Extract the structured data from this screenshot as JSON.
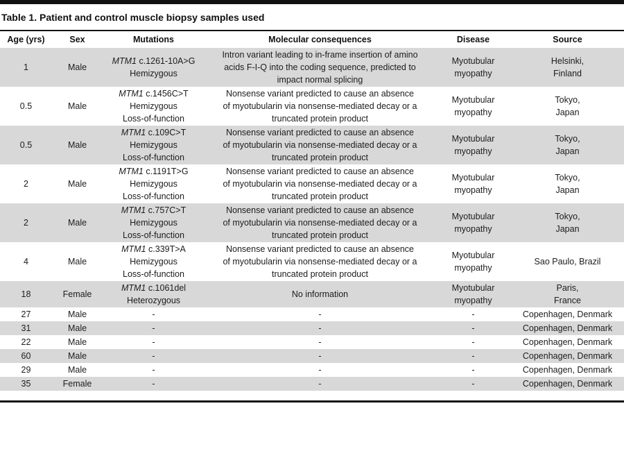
{
  "colors": {
    "stripe_gray": "#d8d8d8",
    "rule_black": "#111111"
  },
  "table": {
    "title": "Table 1. Patient and control muscle biopsy samples used",
    "columns": [
      "Age (yrs)",
      "Sex",
      "Mutations",
      "Molecular consequences",
      "Disease",
      "Source"
    ],
    "rows": [
      {
        "age": "1",
        "sex": "Male",
        "mutation": {
          "gene": "MTM1",
          "variant": "c.1261-10A>G",
          "zygosity": "Hemizygous"
        },
        "consequences": "Intron variant leading to in-frame insertion of amino\nacids F-I-Q into the coding sequence, predicted to\nimpact normal splicing",
        "disease": "Myotubular\nmyopathy",
        "source": "Helsinki,\nFinland"
      },
      {
        "age": "0.5",
        "sex": "Male",
        "mutation": {
          "gene": "MTM1",
          "variant": "c.1456C>T",
          "zygosity": "Hemizygous\nLoss-of-function"
        },
        "consequences": "Nonsense variant predicted to cause an absence\nof myotubularin via nonsense-mediated decay or a\ntruncated protein product",
        "disease": "Myotubular\nmyopathy",
        "source": "Tokyo,\nJapan"
      },
      {
        "age": "0.5",
        "sex": "Male",
        "mutation": {
          "gene": "MTM1",
          "variant": "c.109C>T",
          "zygosity": "Hemizygous\nLoss-of-function"
        },
        "consequences": "Nonsense variant predicted to cause an absence\nof myotubularin via nonsense-mediated decay or a\ntruncated protein product",
        "disease": "Myotubular\nmyopathy",
        "source": "Tokyo,\nJapan"
      },
      {
        "age": "2",
        "sex": "Male",
        "mutation": {
          "gene": "MTM1",
          "variant": "c.1191T>G",
          "zygosity": "Hemizygous\nLoss-of-function"
        },
        "consequences": "Nonsense variant predicted to cause an absence\nof myotubularin via nonsense-mediated decay or a\ntruncated protein product",
        "disease": "Myotubular\nmyopathy",
        "source": "Tokyo,\nJapan"
      },
      {
        "age": "2",
        "sex": "Male",
        "mutation": {
          "gene": "MTM1",
          "variant": "c.757C>T",
          "zygosity": "Hemizygous\nLoss-of-function"
        },
        "consequences": "Nonsense variant predicted to cause an absence\nof myotubularin via nonsense-mediated decay or a\ntruncated protein product",
        "disease": "Myotubular\nmyopathy",
        "source": "Tokyo,\nJapan"
      },
      {
        "age": "4",
        "sex": "Male",
        "mutation": {
          "gene": "MTM1",
          "variant": "c.339T>A",
          "zygosity": "Hemizygous\nLoss-of-function"
        },
        "consequences": "Nonsense variant predicted to cause an absence\nof myotubularin via nonsense-mediated decay or a\ntruncated protein product",
        "disease": "Myotubular\nmyopathy",
        "source": "Sao Paulo, Brazil"
      },
      {
        "age": "18",
        "sex": "Female",
        "mutation": {
          "gene": "MTM1",
          "variant": "c.1061del",
          "zygosity": "Heterozygous"
        },
        "consequences": "No information",
        "disease": "Myotubular\nmyopathy",
        "source": "Paris,\nFrance"
      },
      {
        "age": "27",
        "sex": "Male",
        "mutation": "-",
        "consequences": "-",
        "disease": "-",
        "source": "Copenhagen, Denmark"
      },
      {
        "age": "31",
        "sex": "Male",
        "mutation": "-",
        "consequences": "-",
        "disease": "-",
        "source": "Copenhagen, Denmark"
      },
      {
        "age": "22",
        "sex": "Male",
        "mutation": "-",
        "consequences": "-",
        "disease": "-",
        "source": "Copenhagen, Denmark"
      },
      {
        "age": "60",
        "sex": "Male",
        "mutation": "-",
        "consequences": "-",
        "disease": "-",
        "source": "Copenhagen, Denmark"
      },
      {
        "age": "29",
        "sex": "Male",
        "mutation": "-",
        "consequences": "-",
        "disease": "-",
        "source": "Copenhagen, Denmark"
      },
      {
        "age": "35",
        "sex": "Female",
        "mutation": "-",
        "consequences": "-",
        "disease": "-",
        "source": "Copenhagen, Denmark"
      }
    ]
  }
}
